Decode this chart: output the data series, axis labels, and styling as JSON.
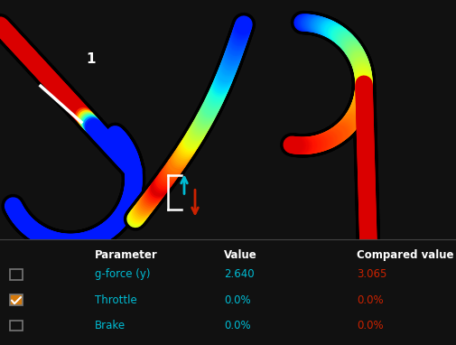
{
  "bg_color": "#111111",
  "table_bg": "#252525",
  "cyan_color": "#00bcd4",
  "red_color": "#cc2200",
  "white_color": "#ffffff",
  "orange_color": "#d4780a",
  "header_color": "#ffffff",
  "value_color": "#00bcd4",
  "compared_color": "#cc2200",
  "parameters": [
    "g-force (y)",
    "Throttle",
    "Brake"
  ],
  "values": [
    "2.640",
    "0.0%",
    "0.0%"
  ],
  "compared_values": [
    "3.065",
    "0.0%",
    "0.0%"
  ],
  "col_header": [
    "Parameter",
    "Value",
    "Compared value"
  ],
  "checkboxes": [
    false,
    true,
    false
  ],
  "label_number": "1",
  "track_split": 0.695,
  "lw_main": 14,
  "lw_edge": 19
}
